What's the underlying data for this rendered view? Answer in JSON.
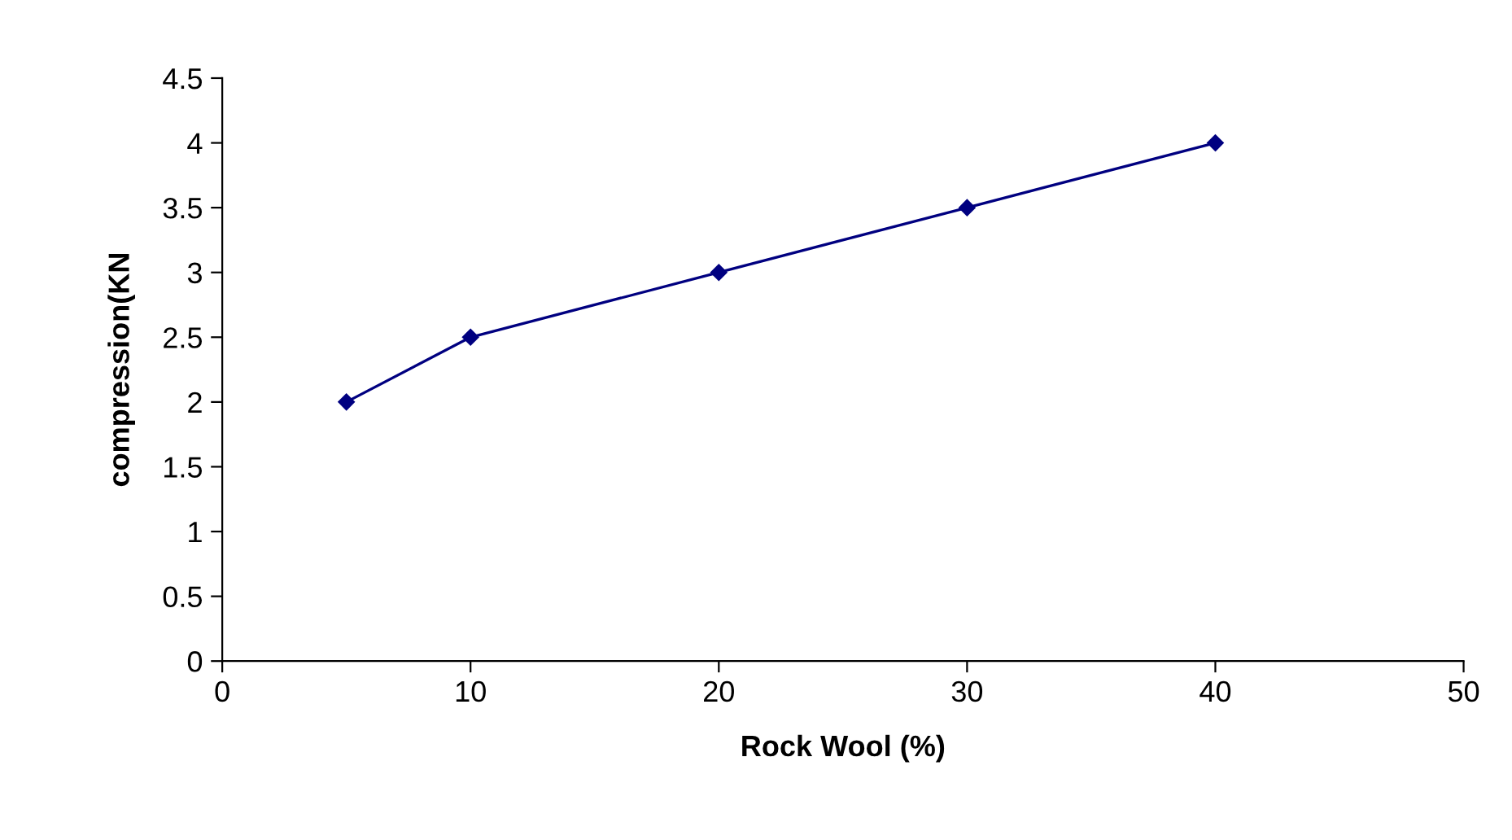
{
  "chart_data": {
    "type": "line",
    "xlabel": "Rock Wool (%)",
    "ylabel": "compression(KN",
    "x": [
      5,
      10,
      20,
      30,
      40
    ],
    "series": [
      {
        "color": "#000080",
        "values": [
          2,
          2.5,
          3,
          3.5,
          4
        ]
      }
    ],
    "xlim": [
      0,
      50
    ],
    "xticks": [
      0,
      10,
      20,
      30,
      40,
      50
    ],
    "ylim": [
      0,
      4.5
    ],
    "yticks": [
      0,
      0.5,
      1,
      1.5,
      2,
      2.5,
      3,
      3.5,
      4,
      4.5
    ],
    "marker": "diamond",
    "line_style": "solid",
    "grid": false
  }
}
